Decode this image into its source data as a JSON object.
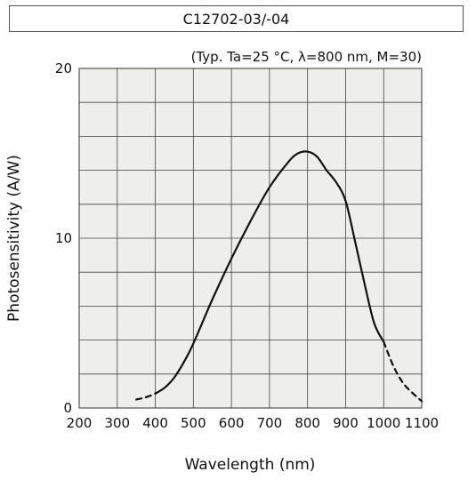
{
  "chart_data": {
    "type": "line",
    "title": "C12702-03/-04",
    "subtitle": "(Typ. Ta=25 °C, λ=800 nm, M=30)",
    "xlabel": "Wavelength (nm)",
    "ylabel": "Photosensitivity (A/W)",
    "xlim": [
      200,
      1100
    ],
    "ylim": [
      0,
      20
    ],
    "x_ticks": [
      "200",
      "300",
      "400",
      "500",
      "600",
      "700",
      "800",
      "900",
      "1000",
      "1100"
    ],
    "y_ticks": [
      "0",
      "10",
      "20"
    ],
    "grid": true,
    "series": [
      {
        "style": "dashed",
        "x": [
          350,
          370,
          390,
          400
        ],
        "y": [
          0.5,
          0.6,
          0.75,
          0.85
        ]
      },
      {
        "style": "solid",
        "x": [
          400,
          425,
          450,
          475,
          500,
          550,
          600,
          650,
          700,
          750,
          775,
          800,
          825,
          850,
          875,
          900,
          925,
          950,
          975,
          1000
        ],
        "y": [
          0.85,
          1.2,
          1.8,
          2.7,
          3.8,
          6.4,
          8.8,
          11.0,
          13.0,
          14.5,
          15.0,
          15.1,
          14.8,
          14.0,
          13.3,
          12.2,
          9.8,
          7.3,
          5.0,
          3.9
        ]
      },
      {
        "style": "dashed",
        "x": [
          1000,
          1025,
          1050,
          1075,
          1100
        ],
        "y": [
          3.9,
          2.5,
          1.5,
          0.9,
          0.4
        ]
      }
    ]
  }
}
